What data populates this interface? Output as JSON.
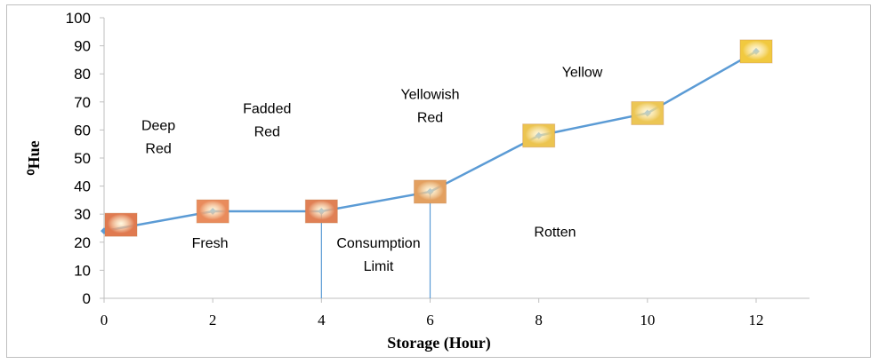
{
  "chart_data": {
    "type": "line",
    "title": "",
    "xlabel": "Storage (Hour)",
    "ylabel": "⁰Hue",
    "xlim": [
      0,
      13
    ],
    "ylim": [
      0,
      100
    ],
    "xticks": [
      0,
      2,
      4,
      6,
      8,
      10,
      12
    ],
    "yticks": [
      0,
      10,
      20,
      30,
      40,
      50,
      60,
      70,
      80,
      90,
      100
    ],
    "grid": false,
    "legend": "none",
    "line_color": "#5b9bd5",
    "series": [
      {
        "x": [
          0,
          2,
          4,
          6,
          8,
          10,
          12
        ],
        "y": [
          24,
          31,
          31,
          38,
          58,
          66,
          88
        ]
      }
    ],
    "swatch_colors": [
      "#e07a50",
      "#e98b5c",
      "#e08055",
      "#e3a060",
      "#ecc450",
      "#ecc655",
      "#f1c93f"
    ],
    "vertical_lines": [
      4,
      6
    ],
    "annotations": [
      {
        "lines": [
          "Deep",
          "Red"
        ],
        "x": 1,
        "y": 60
      },
      {
        "lines": [
          "Fadded",
          "Red"
        ],
        "x": 3,
        "y": 66
      },
      {
        "lines": [
          "Yellowish",
          "Red"
        ],
        "x": 6,
        "y": 71
      },
      {
        "lines": [
          "Yellow"
        ],
        "x": 8.8,
        "y": 79
      },
      {
        "lines": [
          "Fresh"
        ],
        "x": 1.95,
        "y": 18
      },
      {
        "lines": [
          "Consumption",
          "Limit"
        ],
        "x": 5.05,
        "y": 18
      },
      {
        "lines": [
          "Rotten"
        ],
        "x": 8.3,
        "y": 22
      }
    ]
  }
}
